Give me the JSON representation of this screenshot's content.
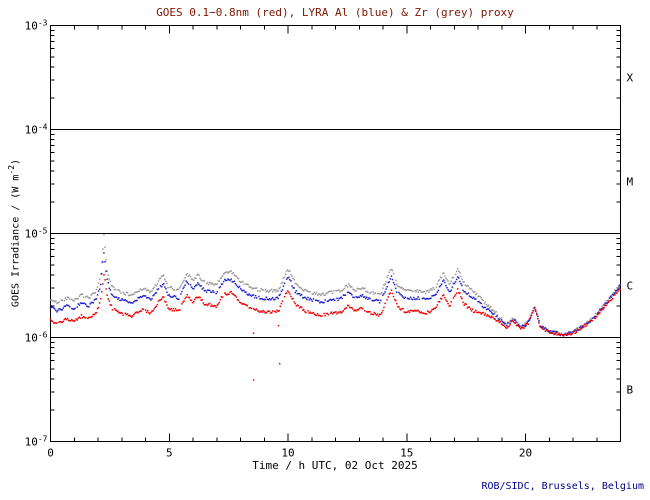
{
  "colors": {
    "background": "#ffffff",
    "axis": "#000000",
    "title": "#7c1500",
    "credit": "#00008b",
    "goes_red": "#ee0000",
    "lyra_al_blue": "#2222cc",
    "lyra_zr_grey": "#9a9a9a"
  },
  "footer": {
    "credit": "ROB/SIDC, Brussels, Belgium"
  },
  "chart_data": {
    "type": "scatter",
    "title": "GOES 0.1−0.8nm (red), LYRA Al (blue) & Zr (grey) proxy",
    "xlabel": "Time / h UTC, 02 Oct 2025",
    "ylabel_parts": [
      {
        "t": "GOES Irradiance / (W m"
      },
      {
        "t": "-2",
        "sup": true
      },
      {
        "t": ")"
      }
    ],
    "grid": false,
    "legend": "encoded in title colors",
    "xlim": [
      0,
      24
    ],
    "x_major_ticks": [
      0,
      5,
      10,
      15,
      20
    ],
    "x_major_labels": [
      "0",
      "5",
      "10",
      "15",
      "20"
    ],
    "x_minor_step": 1,
    "ylog_range_exponents": [
      -7,
      -3
    ],
    "y_major_ticks": [
      {
        "exp": -3,
        "base": "10",
        "sup": "-3"
      },
      {
        "exp": -4,
        "base": "10",
        "sup": "-4"
      },
      {
        "exp": -5,
        "base": "10",
        "sup": "-5"
      },
      {
        "exp": -6,
        "base": "10",
        "sup": "-6"
      },
      {
        "exp": -7,
        "base": "10",
        "sup": "-7"
      }
    ],
    "class_boundary_lines": [
      0.0001,
      1e-05,
      1e-06
    ],
    "flare_classes": [
      {
        "label": "X",
        "center_exp": -3.5
      },
      {
        "label": "M",
        "center_exp": -4.5
      },
      {
        "label": "C",
        "center_exp": -5.5
      },
      {
        "label": "B",
        "center_exp": -6.5
      }
    ],
    "series": [
      {
        "name": "GOES 0.1-0.8nm",
        "color_key": "goes_red",
        "points": [
          [
            0.0,
            1.45e-06
          ],
          [
            0.3,
            1.35e-06
          ],
          [
            0.7,
            1.5e-06
          ],
          [
            1.0,
            1.42e-06
          ],
          [
            1.3,
            1.6e-06
          ],
          [
            1.6,
            1.5e-06
          ],
          [
            1.9,
            1.7e-06
          ],
          [
            2.1,
            2.2e-06
          ],
          [
            2.25,
            4e-06
          ],
          [
            2.4,
            2.5e-06
          ],
          [
            2.6,
            1.9e-06
          ],
          [
            3.0,
            1.7e-06
          ],
          [
            3.4,
            1.6e-06
          ],
          [
            3.9,
            1.9e-06
          ],
          [
            4.2,
            1.7e-06
          ],
          [
            4.75,
            2.5e-06
          ],
          [
            4.95,
            1.9e-06
          ],
          [
            5.4,
            1.8e-06
          ],
          [
            5.75,
            2.6e-06
          ],
          [
            6.0,
            2.2e-06
          ],
          [
            6.2,
            2.5e-06
          ],
          [
            6.5,
            2.1e-06
          ],
          [
            7.0,
            2e-06
          ],
          [
            7.3,
            2.6e-06
          ],
          [
            7.6,
            2.7e-06
          ],
          [
            8.0,
            2.2e-06
          ],
          [
            8.4,
            1.9e-06
          ],
          [
            8.8,
            1.8e-06
          ],
          [
            9.2,
            1.75e-06
          ],
          [
            9.6,
            1.8e-06
          ],
          [
            10.0,
            2.9e-06
          ],
          [
            10.3,
            2.1e-06
          ],
          [
            10.7,
            1.8e-06
          ],
          [
            11.0,
            1.7e-06
          ],
          [
            11.4,
            1.65e-06
          ],
          [
            11.8,
            1.7e-06
          ],
          [
            12.2,
            1.75e-06
          ],
          [
            12.55,
            2e-06
          ],
          [
            12.8,
            1.8e-06
          ],
          [
            13.1,
            1.9e-06
          ],
          [
            13.5,
            1.7e-06
          ],
          [
            13.9,
            1.65e-06
          ],
          [
            14.35,
            2.9e-06
          ],
          [
            14.6,
            2e-06
          ],
          [
            15.0,
            1.75e-06
          ],
          [
            15.4,
            1.8e-06
          ],
          [
            15.8,
            1.7e-06
          ],
          [
            16.2,
            1.9e-06
          ],
          [
            16.55,
            2.6e-06
          ],
          [
            16.8,
            2e-06
          ],
          [
            17.15,
            2.9e-06
          ],
          [
            17.4,
            2.1e-06
          ],
          [
            17.8,
            1.8e-06
          ],
          [
            18.2,
            1.7e-06
          ],
          [
            18.6,
            1.55e-06
          ],
          [
            18.9,
            1.4e-06
          ],
          [
            19.2,
            1.25e-06
          ],
          [
            19.5,
            1.45e-06
          ],
          [
            19.8,
            1.2e-06
          ],
          [
            20.1,
            1.35e-06
          ],
          [
            20.4,
            1.95e-06
          ],
          [
            20.6,
            1.3e-06
          ],
          [
            20.9,
            1.15e-06
          ],
          [
            21.3,
            1.08e-06
          ],
          [
            21.6,
            1.05e-06
          ],
          [
            22.0,
            1.1e-06
          ],
          [
            22.4,
            1.25e-06
          ],
          [
            22.8,
            1.45e-06
          ],
          [
            23.2,
            1.8e-06
          ],
          [
            23.6,
            2.3e-06
          ],
          [
            24.0,
            3e-06
          ]
        ]
      },
      {
        "name": "LYRA Al",
        "color_key": "lyra_al_blue",
        "points": [
          [
            0.0,
            1.95e-06
          ],
          [
            0.3,
            1.8e-06
          ],
          [
            0.7,
            2e-06
          ],
          [
            1.0,
            1.9e-06
          ],
          [
            1.3,
            2.15e-06
          ],
          [
            1.6,
            2e-06
          ],
          [
            1.9,
            2.3e-06
          ],
          [
            2.1,
            3.1e-06
          ],
          [
            2.25,
            6.5e-06
          ],
          [
            2.4,
            3.4e-06
          ],
          [
            2.6,
            2.55e-06
          ],
          [
            3.0,
            2.3e-06
          ],
          [
            3.4,
            2.15e-06
          ],
          [
            3.9,
            2.55e-06
          ],
          [
            4.2,
            2.3e-06
          ],
          [
            4.75,
            3.3e-06
          ],
          [
            4.95,
            2.55e-06
          ],
          [
            5.4,
            2.4e-06
          ],
          [
            5.75,
            3.5e-06
          ],
          [
            6.0,
            2.95e-06
          ],
          [
            6.2,
            3.35e-06
          ],
          [
            6.5,
            2.8e-06
          ],
          [
            7.0,
            2.7e-06
          ],
          [
            7.3,
            3.5e-06
          ],
          [
            7.6,
            3.6e-06
          ],
          [
            8.0,
            2.95e-06
          ],
          [
            8.4,
            2.55e-06
          ],
          [
            8.8,
            2.4e-06
          ],
          [
            9.2,
            2.35e-06
          ],
          [
            9.6,
            2.4e-06
          ],
          [
            10.0,
            3.9e-06
          ],
          [
            10.3,
            2.8e-06
          ],
          [
            10.7,
            2.4e-06
          ],
          [
            11.0,
            2.3e-06
          ],
          [
            11.4,
            2.2e-06
          ],
          [
            11.8,
            2.3e-06
          ],
          [
            12.2,
            2.35e-06
          ],
          [
            12.55,
            2.7e-06
          ],
          [
            12.8,
            2.4e-06
          ],
          [
            13.1,
            2.55e-06
          ],
          [
            13.5,
            2.3e-06
          ],
          [
            13.9,
            2.2e-06
          ],
          [
            14.35,
            3.9e-06
          ],
          [
            14.6,
            2.7e-06
          ],
          [
            15.0,
            2.35e-06
          ],
          [
            15.4,
            2.4e-06
          ],
          [
            15.8,
            2.3e-06
          ],
          [
            16.2,
            2.55e-06
          ],
          [
            16.55,
            3.5e-06
          ],
          [
            16.8,
            2.7e-06
          ],
          [
            17.15,
            3.9e-06
          ],
          [
            17.4,
            2.8e-06
          ],
          [
            17.8,
            2.4e-06
          ],
          [
            18.2,
            2e-06
          ],
          [
            18.6,
            1.75e-06
          ],
          [
            18.9,
            1.5e-06
          ],
          [
            19.2,
            1.3e-06
          ],
          [
            19.5,
            1.5e-06
          ],
          [
            19.8,
            1.23e-06
          ],
          [
            20.1,
            1.38e-06
          ],
          [
            20.4,
            1.98e-06
          ],
          [
            20.6,
            1.32e-06
          ],
          [
            20.9,
            1.17e-06
          ],
          [
            21.3,
            1.1e-06
          ],
          [
            21.6,
            1.06e-06
          ],
          [
            22.0,
            1.12e-06
          ],
          [
            22.4,
            1.28e-06
          ],
          [
            22.8,
            1.5e-06
          ],
          [
            23.2,
            1.9e-06
          ],
          [
            23.6,
            2.45e-06
          ],
          [
            24.0,
            3.2e-06
          ]
        ]
      },
      {
        "name": "LYRA Zr proxy",
        "color_key": "lyra_zr_grey",
        "points": [
          [
            0.0,
            2.3e-06
          ],
          [
            0.3,
            2.15e-06
          ],
          [
            0.7,
            2.4e-06
          ],
          [
            1.0,
            2.28e-06
          ],
          [
            1.3,
            2.55e-06
          ],
          [
            1.6,
            2.4e-06
          ],
          [
            1.9,
            2.7e-06
          ],
          [
            2.1,
            3.7e-06
          ],
          [
            2.25,
            9.5e-06
          ],
          [
            2.4,
            4.1e-06
          ],
          [
            2.6,
            3.05e-06
          ],
          [
            3.0,
            2.7e-06
          ],
          [
            3.4,
            2.55e-06
          ],
          [
            3.9,
            3e-06
          ],
          [
            4.2,
            2.7e-06
          ],
          [
            4.75,
            4e-06
          ],
          [
            4.95,
            3.05e-06
          ],
          [
            5.4,
            2.85e-06
          ],
          [
            5.75,
            4.15e-06
          ],
          [
            6.0,
            3.5e-06
          ],
          [
            6.2,
            4e-06
          ],
          [
            6.5,
            3.35e-06
          ],
          [
            7.0,
            3.2e-06
          ],
          [
            7.3,
            4.15e-06
          ],
          [
            7.6,
            4.3e-06
          ],
          [
            8.0,
            3.5e-06
          ],
          [
            8.4,
            3.05e-06
          ],
          [
            8.8,
            2.85e-06
          ],
          [
            9.2,
            2.8e-06
          ],
          [
            9.6,
            2.85e-06
          ],
          [
            10.0,
            4.6e-06
          ],
          [
            10.3,
            3.35e-06
          ],
          [
            10.7,
            2.85e-06
          ],
          [
            11.0,
            2.7e-06
          ],
          [
            11.4,
            2.6e-06
          ],
          [
            11.8,
            2.7e-06
          ],
          [
            12.2,
            2.8e-06
          ],
          [
            12.55,
            3.2e-06
          ],
          [
            12.8,
            2.85e-06
          ],
          [
            13.1,
            3e-06
          ],
          [
            13.5,
            2.7e-06
          ],
          [
            13.9,
            2.6e-06
          ],
          [
            14.35,
            4.6e-06
          ],
          [
            14.6,
            3.2e-06
          ],
          [
            15.0,
            2.8e-06
          ],
          [
            15.4,
            2.85e-06
          ],
          [
            15.8,
            2.7e-06
          ],
          [
            16.2,
            3e-06
          ],
          [
            16.55,
            4.15e-06
          ],
          [
            16.8,
            3.2e-06
          ],
          [
            17.15,
            4.6e-06
          ],
          [
            17.4,
            3.35e-06
          ],
          [
            17.8,
            2.85e-06
          ],
          [
            18.2,
            2.25e-06
          ],
          [
            18.6,
            1.9e-06
          ],
          [
            18.9,
            1.58e-06
          ],
          [
            19.2,
            1.33e-06
          ],
          [
            19.5,
            1.53e-06
          ],
          [
            19.8,
            1.25e-06
          ],
          [
            20.1,
            1.4e-06
          ],
          [
            20.4,
            2e-06
          ],
          [
            20.6,
            1.34e-06
          ],
          [
            20.9,
            1.18e-06
          ],
          [
            21.3,
            1.11e-06
          ],
          [
            21.6,
            1.07e-06
          ],
          [
            22.0,
            1.13e-06
          ],
          [
            22.4,
            1.29e-06
          ],
          [
            22.8,
            1.51e-06
          ],
          [
            23.2,
            1.92e-06
          ],
          [
            23.6,
            2.5e-06
          ],
          [
            24.0,
            3.25e-06
          ]
        ]
      }
    ],
    "stray_points": {
      "color_key": "goes_red",
      "points": [
        [
          8.55,
          1.1e-06
        ],
        [
          8.55,
          3.9e-07
        ],
        [
          9.6,
          1.3e-06
        ],
        [
          9.65,
          5.6e-07
        ]
      ]
    }
  }
}
